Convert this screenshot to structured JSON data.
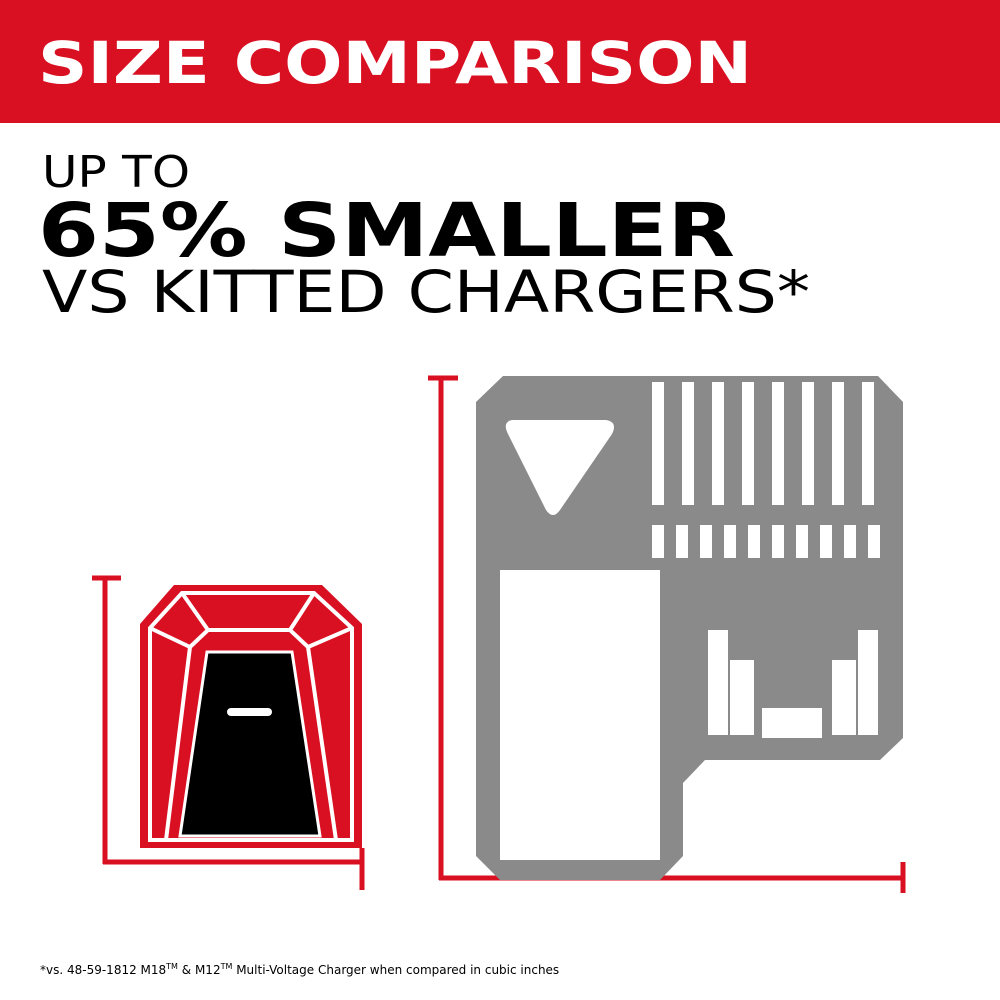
{
  "header": {
    "title": "SIZE COMPARISON"
  },
  "headline": {
    "line1": "UP TO",
    "line2": "65% SMALLER",
    "line3": "VS KITTED CHARGERS*"
  },
  "footnote": {
    "parts": [
      "*vs. 48-59-1812 M18",
      "TM",
      " & M12",
      "TM",
      " Multi-Voltage Charger when compared in cubic inches"
    ]
  }
}
